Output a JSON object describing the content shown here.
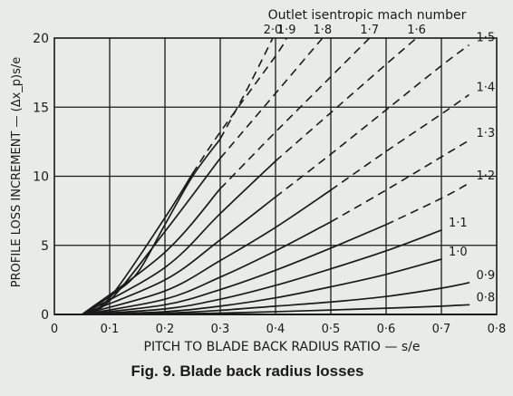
{
  "figure": {
    "caption": "Fig. 9.  Blade back radius losses"
  },
  "chart_data": {
    "type": "line",
    "title": "",
    "xlabel": "PITCH TO BLADE BACK RADIUS RATIO — s/e",
    "ylabel": "PROFILE LOSS INCREMENT — (Δx_p)s/e",
    "top_axis_title": "Outlet isentropic mach number",
    "xlim": [
      0,
      0.8
    ],
    "ylim": [
      0,
      20
    ],
    "x_ticks": [
      0,
      0.1,
      0.2,
      0.3,
      0.4,
      0.5,
      0.6,
      0.7,
      0.8
    ],
    "x_tick_labels": [
      "0",
      "0·1",
      "0·2",
      "0·3",
      "0·4",
      "0·5",
      "0·6",
      "0·7",
      "0·8"
    ],
    "y_ticks": [
      0,
      5,
      10,
      15,
      20
    ],
    "y_tick_labels": [
      "0",
      "5",
      "10",
      "15",
      "20"
    ],
    "grid": true,
    "line_color": "#1a1a1a",
    "series": [
      {
        "name": "0·8",
        "label_pos": "right",
        "solid": [
          [
            0.05,
            0
          ],
          [
            0.2,
            0.05
          ],
          [
            0.3,
            0.1
          ],
          [
            0.4,
            0.2
          ],
          [
            0.5,
            0.32
          ],
          [
            0.6,
            0.45
          ],
          [
            0.7,
            0.6
          ],
          [
            0.75,
            0.7
          ]
        ],
        "dashed": []
      },
      {
        "name": "0·9",
        "label_pos": "right",
        "solid": [
          [
            0.05,
            0
          ],
          [
            0.2,
            0.1
          ],
          [
            0.3,
            0.3
          ],
          [
            0.4,
            0.6
          ],
          [
            0.5,
            0.9
          ],
          [
            0.6,
            1.3
          ],
          [
            0.7,
            1.9
          ],
          [
            0.75,
            2.3
          ]
        ],
        "dashed": []
      },
      {
        "name": "1·0",
        "label_pos": "right",
        "solid": [
          [
            0.05,
            0
          ],
          [
            0.2,
            0.2
          ],
          [
            0.3,
            0.6
          ],
          [
            0.4,
            1.2
          ],
          [
            0.5,
            2.0
          ],
          [
            0.6,
            2.9
          ],
          [
            0.7,
            4.0
          ]
        ],
        "dashed": []
      },
      {
        "name": "1·1",
        "label_pos": "right",
        "solid": [
          [
            0.05,
            0
          ],
          [
            0.2,
            0.4
          ],
          [
            0.3,
            1.1
          ],
          [
            0.4,
            2.1
          ],
          [
            0.5,
            3.3
          ],
          [
            0.6,
            4.6
          ],
          [
            0.7,
            6.1
          ]
        ],
        "dashed": []
      },
      {
        "name": "1·2",
        "label_pos": "right",
        "solid": [
          [
            0.05,
            0
          ],
          [
            0.2,
            0.7
          ],
          [
            0.3,
            1.8
          ],
          [
            0.4,
            3.2
          ],
          [
            0.5,
            4.8
          ],
          [
            0.6,
            6.5
          ]
        ],
        "dashed": [
          [
            0.6,
            6.5
          ],
          [
            0.7,
            8.4
          ],
          [
            0.75,
            9.5
          ]
        ]
      },
      {
        "name": "1·3",
        "label_pos": "right",
        "solid": [
          [
            0.05,
            0
          ],
          [
            0.2,
            1.1
          ],
          [
            0.3,
            2.7
          ],
          [
            0.4,
            4.6
          ],
          [
            0.5,
            6.7
          ]
        ],
        "dashed": [
          [
            0.5,
            6.7
          ],
          [
            0.6,
            9.0
          ],
          [
            0.7,
            11.4
          ],
          [
            0.75,
            12.6
          ]
        ]
      },
      {
        "name": "1·4",
        "label_pos": "right",
        "solid": [
          [
            0.05,
            0
          ],
          [
            0.2,
            1.7
          ],
          [
            0.3,
            3.9
          ],
          [
            0.4,
            6.3
          ],
          [
            0.5,
            9.0
          ]
        ],
        "dashed": [
          [
            0.5,
            9.0
          ],
          [
            0.6,
            11.8
          ],
          [
            0.7,
            14.5
          ],
          [
            0.75,
            15.9
          ]
        ]
      },
      {
        "name": "1·5",
        "label_pos": "right",
        "solid": [
          [
            0.05,
            0
          ],
          [
            0.2,
            2.5
          ],
          [
            0.3,
            5.4
          ],
          [
            0.4,
            8.5
          ]
        ],
        "dashed": [
          [
            0.4,
            8.5
          ],
          [
            0.5,
            11.6
          ],
          [
            0.6,
            14.8
          ],
          [
            0.7,
            18.0
          ],
          [
            0.75,
            19.5
          ]
        ]
      },
      {
        "name": "1·6",
        "label_pos": "top",
        "solid": [
          [
            0.05,
            0
          ],
          [
            0.2,
            3.4
          ],
          [
            0.3,
            7.3
          ],
          [
            0.4,
            11.1
          ]
        ],
        "dashed": [
          [
            0.4,
            11.1
          ],
          [
            0.5,
            14.6
          ],
          [
            0.6,
            18.1
          ],
          [
            0.655,
            20
          ]
        ]
      },
      {
        "name": "1·7",
        "label_pos": "top",
        "solid": [
          [
            0.05,
            0
          ],
          [
            0.2,
            4.5
          ],
          [
            0.3,
            9.1
          ]
        ],
        "dashed": [
          [
            0.3,
            9.1
          ],
          [
            0.4,
            13.2
          ],
          [
            0.5,
            17.2
          ],
          [
            0.57,
            20
          ]
        ]
      },
      {
        "name": "1·8",
        "label_pos": "top",
        "solid": [
          [
            0.05,
            0
          ],
          [
            0.1,
            1.0
          ],
          [
            0.2,
            6.0
          ],
          [
            0.3,
            11.3
          ]
        ],
        "dashed": [
          [
            0.3,
            11.3
          ],
          [
            0.4,
            16.0
          ],
          [
            0.485,
            20
          ]
        ]
      },
      {
        "name": "1·9",
        "label_pos": "top",
        "solid": [
          [
            0.05,
            0
          ],
          [
            0.1,
            1.2
          ],
          [
            0.2,
            7.0
          ],
          [
            0.25,
            10.2
          ]
        ],
        "dashed": [
          [
            0.25,
            10.2
          ],
          [
            0.3,
            13.2
          ],
          [
            0.4,
            18.7
          ],
          [
            0.42,
            20
          ]
        ]
      },
      {
        "name": "2·0",
        "label_pos": "top",
        "solid": [
          [
            0.05,
            0
          ],
          [
            0.1,
            1.3
          ],
          [
            0.15,
            3.0
          ],
          [
            0.2,
            6.5
          ],
          [
            0.25,
            10.0
          ],
          [
            0.3,
            12.7
          ]
        ],
        "dashed": [
          [
            0.3,
            12.7
          ],
          [
            0.35,
            16.4
          ],
          [
            0.395,
            20
          ]
        ]
      }
    ]
  }
}
